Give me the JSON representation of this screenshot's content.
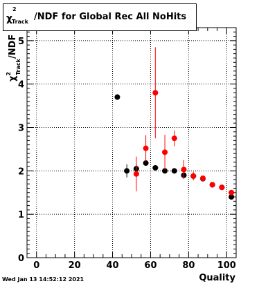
{
  "title": {
    "prefix": "χ",
    "sup": "2",
    "sub": "Track",
    "rest": "/NDF for Global Rec All NoHits"
  },
  "footer": "Wed Jan 13 14:52:12 2021",
  "colors": {
    "series_black": "#000000",
    "series_red": "#ff0000"
  },
  "chart_data": {
    "type": "scatter",
    "title": "χ2_Track/NDF for Global Rec All NoHits",
    "xlabel": "Quality",
    "ylabel": {
      "chi": "χ",
      "sup": "2",
      "sub": "Track",
      "rest": "/NDF"
    },
    "xlim": [
      -5,
      105
    ],
    "ylim": [
      0,
      5.3
    ],
    "xticks": [
      0,
      20,
      40,
      60,
      80,
      100
    ],
    "xtick_labels": [
      "0",
      "20",
      "40",
      "60",
      "80",
      "100"
    ],
    "yticks": [
      0,
      1,
      2,
      3,
      4,
      5
    ],
    "ytick_labels": [
      "0",
      "1",
      "2",
      "3",
      "4",
      "5"
    ],
    "grid": true,
    "series": [
      {
        "color": "#000000",
        "points": [
          {
            "x": 42.5,
            "y": 3.7,
            "err": 0.02
          },
          {
            "x": 47.5,
            "y": 2.0,
            "err": 0.15
          },
          {
            "x": 52.5,
            "y": 2.05,
            "err": 0.1
          },
          {
            "x": 57.5,
            "y": 2.18,
            "err": 0.06
          },
          {
            "x": 62.5,
            "y": 2.07,
            "err": 0.04
          },
          {
            "x": 67.5,
            "y": 2.0,
            "err": 0.03
          },
          {
            "x": 72.5,
            "y": 2.0,
            "err": 0.03
          },
          {
            "x": 77.5,
            "y": 1.9,
            "err": 0.02
          },
          {
            "x": 82.5,
            "y": 1.88,
            "err": 0.02
          },
          {
            "x": 87.5,
            "y": 1.82,
            "err": 0.02
          },
          {
            "x": 92.5,
            "y": 1.68,
            "err": 0.02
          },
          {
            "x": 97.5,
            "y": 1.62,
            "err": 0.02
          },
          {
            "x": 102.5,
            "y": 1.4,
            "err": 0.03
          }
        ]
      },
      {
        "color": "#ff0000",
        "points": [
          {
            "x": 52.5,
            "y": 1.93,
            "err": 0.4
          },
          {
            "x": 57.5,
            "y": 2.52,
            "err": 0.3
          },
          {
            "x": 62.5,
            "y": 3.8,
            "err": 1.05
          },
          {
            "x": 67.5,
            "y": 2.43,
            "err": 0.4
          },
          {
            "x": 72.5,
            "y": 2.75,
            "err": 0.18
          },
          {
            "x": 77.5,
            "y": 2.03,
            "err": 0.22
          },
          {
            "x": 82.5,
            "y": 1.88,
            "err": 0.1
          },
          {
            "x": 87.5,
            "y": 1.83,
            "err": 0.06
          },
          {
            "x": 92.5,
            "y": 1.68,
            "err": 0.04
          },
          {
            "x": 97.5,
            "y": 1.62,
            "err": 0.04
          },
          {
            "x": 102.5,
            "y": 1.5,
            "err": 0.04
          }
        ]
      }
    ]
  }
}
